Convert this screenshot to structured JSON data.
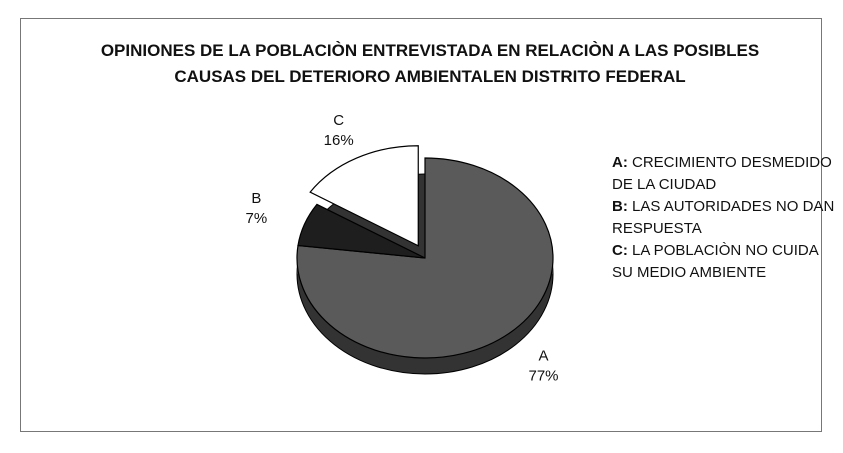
{
  "chart_data": {
    "type": "pie",
    "title": "OPINIONES DE LA POBLACIÒN ENTREVISTADA EN RELACIÒN A LAS POSIBLES CAUSAS DEL DETERIORO AMBIENTALEN DISTRITO FEDERAL",
    "categories": [
      "A",
      "B",
      "C"
    ],
    "values": [
      77,
      7,
      16
    ],
    "value_labels": [
      "77%",
      "7%",
      "16%"
    ],
    "colors": [
      "#5a5a5a",
      "#1e1e1e",
      "#ffffff"
    ],
    "legend": [
      {
        "key": "A:",
        "text": "CRECIMIENTO DESMEDIDO DE LA CIUDAD"
      },
      {
        "key": "B:",
        "text": "LAS AUTORIDADES NO DAN RESPUESTA"
      },
      {
        "key": "C:",
        "text": "LA POBLACIÒN NO CUIDA SU MEDIO AMBIENTE"
      }
    ]
  }
}
